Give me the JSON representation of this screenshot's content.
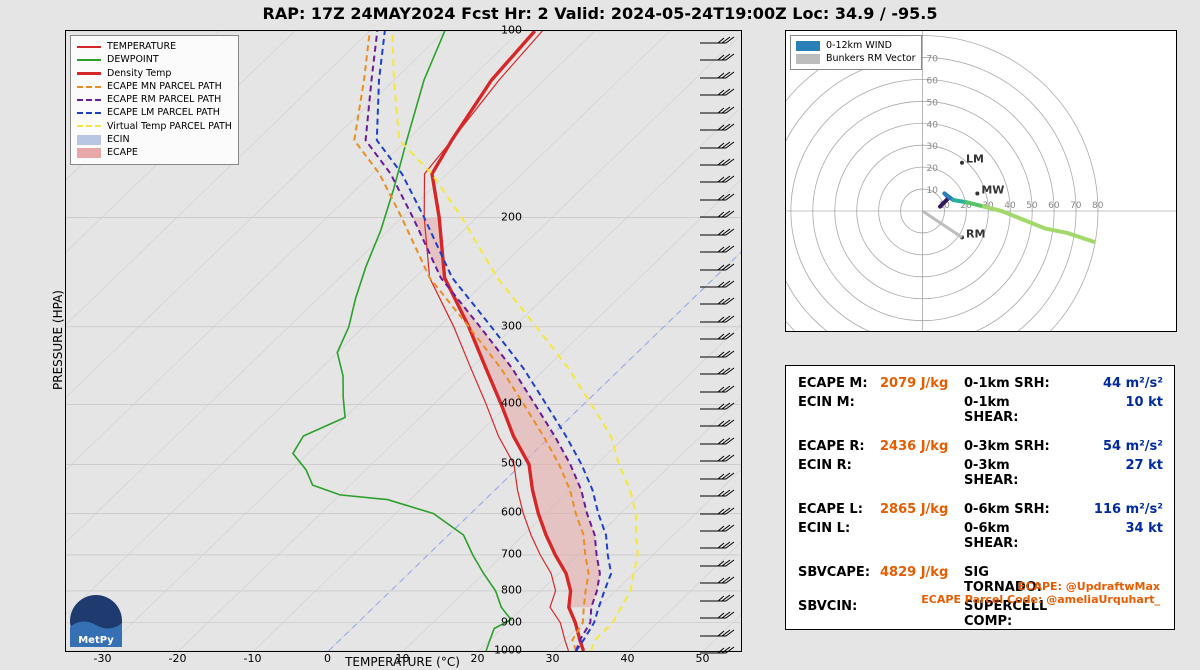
{
  "title": "RAP: 17Z 24MAY2024 Fcst Hr: 2  Valid: 2024-05-24T19:00Z  Loc: 34.9 / -95.5",
  "skewt": {
    "type": "skewt-logp",
    "xlabel": "TEMPERATURE (°C)",
    "ylabel": "PRESSURE (HPA)",
    "xlim": [
      -35,
      55
    ],
    "xticks": [
      -30,
      -20,
      -10,
      0,
      10,
      20,
      30,
      40,
      50
    ],
    "pressure_levels": [
      100,
      200,
      300,
      400,
      500,
      600,
      700,
      800,
      900,
      1000
    ],
    "background_color": "#e5e5e5",
    "grid_color": "#cccccc",
    "skew_guide_color": "#9aaee8",
    "ecape_fill_color": "#e8a8a8",
    "ecape_fill_opacity": 0.55,
    "ecin_fill_color": "#b8c6e4",
    "series": {
      "temperature": {
        "label": "TEMPERATURE",
        "color": "#d62728",
        "width": 1.2,
        "dash": "none",
        "pts": [
          [
            32,
            1000
          ],
          [
            30,
            960
          ],
          [
            27,
            900
          ],
          [
            23.5,
            850
          ],
          [
            22,
            800
          ],
          [
            19,
            750
          ],
          [
            15,
            700
          ],
          [
            11,
            650
          ],
          [
            7,
            600
          ],
          [
            3,
            550
          ],
          [
            -1,
            500
          ],
          [
            -7,
            450
          ],
          [
            -13,
            400
          ],
          [
            -20,
            350
          ],
          [
            -28,
            300
          ],
          [
            -38,
            250
          ],
          [
            -47,
            200
          ],
          [
            -53,
            170
          ],
          [
            -54,
            150
          ],
          [
            -56,
            120
          ],
          [
            -57,
            100
          ]
        ]
      },
      "dewpoint": {
        "label": "DEWPOINT",
        "color": "#2ca02c",
        "width": 1.6,
        "dash": "none",
        "pts": [
          [
            21,
            1000
          ],
          [
            20,
            960
          ],
          [
            19,
            920
          ],
          [
            20,
            890
          ],
          [
            17,
            850
          ],
          [
            14,
            800
          ],
          [
            10,
            750
          ],
          [
            6,
            700
          ],
          [
            2,
            650
          ],
          [
            -5,
            600
          ],
          [
            -13,
            570
          ],
          [
            -20,
            560
          ],
          [
            -25,
            540
          ],
          [
            -28,
            510
          ],
          [
            -32,
            480
          ],
          [
            -33,
            450
          ],
          [
            -30,
            420
          ],
          [
            -33,
            390
          ],
          [
            -36,
            360
          ],
          [
            -40,
            330
          ],
          [
            -42,
            300
          ],
          [
            -45,
            270
          ],
          [
            -48,
            240
          ],
          [
            -51,
            210
          ],
          [
            -55,
            180
          ],
          [
            -60,
            150
          ],
          [
            -66,
            120
          ],
          [
            -70,
            100
          ]
        ]
      },
      "density_temp": {
        "label": "Density Temp",
        "color": "#d62728",
        "width": 3.4,
        "dash": "none",
        "pts": [
          [
            34,
            1000
          ],
          [
            32,
            960
          ],
          [
            29,
            900
          ],
          [
            26,
            850
          ],
          [
            24,
            800
          ],
          [
            21,
            750
          ],
          [
            17,
            700
          ],
          [
            13,
            650
          ],
          [
            9,
            600
          ],
          [
            5,
            550
          ],
          [
            1,
            500
          ],
          [
            -5,
            450
          ],
          [
            -11,
            400
          ],
          [
            -18,
            350
          ],
          [
            -26,
            300
          ],
          [
            -36,
            250
          ],
          [
            -45,
            200
          ],
          [
            -52,
            170
          ],
          [
            -54,
            150
          ],
          [
            -57,
            120
          ],
          [
            -58,
            100
          ]
        ]
      },
      "ecape_mn": {
        "label": "ECAPE MN PARCEL PATH",
        "color": "#e98e24",
        "width": 2.0,
        "dash": "6,4",
        "pts": [
          [
            33,
            1000
          ],
          [
            31,
            960
          ],
          [
            30,
            900
          ],
          [
            28,
            850
          ],
          [
            26,
            800
          ],
          [
            24,
            750
          ],
          [
            21,
            700
          ],
          [
            18,
            650
          ],
          [
            14,
            600
          ],
          [
            10,
            550
          ],
          [
            5,
            500
          ],
          [
            -1,
            450
          ],
          [
            -8,
            400
          ],
          [
            -16,
            350
          ],
          [
            -26,
            300
          ],
          [
            -38,
            250
          ],
          [
            -50,
            200
          ],
          [
            -59,
            170
          ],
          [
            -67,
            150
          ],
          [
            -74,
            120
          ],
          [
            -80,
            100
          ]
        ]
      },
      "ecape_rm": {
        "label": "ECAPE RM PARCEL PATH",
        "color": "#6a1b9a",
        "width": 2.0,
        "dash": "6,4",
        "pts": [
          [
            33,
            1000
          ],
          [
            32,
            960
          ],
          [
            31,
            900
          ],
          [
            29,
            850
          ],
          [
            27.5,
            800
          ],
          [
            25.5,
            750
          ],
          [
            22.5,
            700
          ],
          [
            19.5,
            650
          ],
          [
            15.5,
            600
          ],
          [
            11.5,
            550
          ],
          [
            6.5,
            500
          ],
          [
            0.5,
            450
          ],
          [
            -6.5,
            400
          ],
          [
            -14.5,
            350
          ],
          [
            -24.5,
            300
          ],
          [
            -36.5,
            250
          ],
          [
            -48.5,
            200
          ],
          [
            -57.5,
            170
          ],
          [
            -65.5,
            150
          ],
          [
            -73,
            120
          ],
          [
            -79,
            100
          ]
        ]
      },
      "ecape_lm": {
        "label": "ECAPE LM PARCEL PATH",
        "color": "#1e40c8",
        "width": 2.0,
        "dash": "6,4",
        "pts": [
          [
            33,
            1000
          ],
          [
            32.5,
            960
          ],
          [
            31.5,
            900
          ],
          [
            30,
            850
          ],
          [
            28.5,
            800
          ],
          [
            27,
            750
          ],
          [
            24,
            700
          ],
          [
            21,
            650
          ],
          [
            17,
            600
          ],
          [
            13,
            550
          ],
          [
            8,
            500
          ],
          [
            2,
            450
          ],
          [
            -5,
            400
          ],
          [
            -13,
            350
          ],
          [
            -23,
            300
          ],
          [
            -35,
            250
          ],
          [
            -47,
            200
          ],
          [
            -56,
            170
          ],
          [
            -64,
            150
          ],
          [
            -72,
            120
          ],
          [
            -78,
            100
          ]
        ]
      },
      "virt_temp": {
        "label": "Virtual Temp PARCEL PATH",
        "color": "#f5e83b",
        "width": 2.0,
        "dash": "7,5",
        "pts": [
          [
            35,
            1000
          ],
          [
            34,
            960
          ],
          [
            34,
            900
          ],
          [
            33,
            850
          ],
          [
            32,
            800
          ],
          [
            30,
            750
          ],
          [
            28,
            700
          ],
          [
            25,
            650
          ],
          [
            22,
            600
          ],
          [
            18,
            550
          ],
          [
            13,
            500
          ],
          [
            8,
            450
          ],
          [
            1,
            400
          ],
          [
            -7,
            350
          ],
          [
            -17,
            300
          ],
          [
            -29,
            250
          ],
          [
            -42,
            200
          ],
          [
            -52,
            170
          ],
          [
            -61,
            150
          ],
          [
            -70,
            120
          ],
          [
            -77,
            100
          ]
        ]
      }
    },
    "legend_patches": {
      "ecin": {
        "label": "ECIN",
        "color": "#b8c6e4"
      },
      "ecape": {
        "label": "ECAPE",
        "color": "#e8a8a8"
      }
    }
  },
  "barbs": {
    "count": 36,
    "color": "#000000"
  },
  "hodo": {
    "type": "hodograph",
    "background_color": "#ffffff",
    "ring_color": "#aaaaaa",
    "ring_max": 80,
    "ring_step": 10,
    "center_offset": [
      0.35,
      0.6
    ],
    "legend": [
      {
        "label": "0-12km WIND",
        "color": "#2980b9",
        "patch": true
      },
      {
        "label": "Bunkers RM Vector",
        "color": "#bdbdbd",
        "patch": true
      }
    ],
    "annotations": {
      "LM": [
        18,
        -22
      ],
      "MW": [
        25,
        -8
      ],
      "RM": [
        18,
        12
      ]
    },
    "trace_colors": [
      "#301860",
      "#3838a8",
      "#2980b9",
      "#27ae9c",
      "#56c568",
      "#a2d96a"
    ],
    "trace": [
      [
        8,
        -2
      ],
      [
        12,
        -6
      ],
      [
        10,
        -8
      ],
      [
        14,
        -5
      ],
      [
        20,
        -4
      ],
      [
        28,
        -2
      ],
      [
        36,
        0
      ],
      [
        46,
        4
      ],
      [
        56,
        8
      ],
      [
        66,
        10
      ],
      [
        78,
        14
      ]
    ]
  },
  "stats": {
    "rows": [
      {
        "l1": "ECAPE M:",
        "v1": "2079 J/kg",
        "l2": "0-1km SRH:",
        "v2": "44 m²/s²"
      },
      {
        "l1": "ECIN M:",
        "v1": "",
        "l2": "0-1km SHEAR:",
        "v2": "10 kt"
      },
      {
        "gap": true
      },
      {
        "l1": "ECAPE R:",
        "v1": "2436 J/kg",
        "l2": "0-3km SRH:",
        "v2": "54 m²/s²"
      },
      {
        "l1": "ECIN R:",
        "v1": "",
        "l2": "0-3km SHEAR:",
        "v2": "27 kt"
      },
      {
        "gap": true
      },
      {
        "l1": "ECAPE L:",
        "v1": "2865 J/kg",
        "l2": "0-6km SRH:",
        "v2": "116 m²/s²"
      },
      {
        "l1": "ECIN L:",
        "v1": "",
        "l2": "0-6km SHEAR:",
        "v2": "34 kt"
      },
      {
        "gap": true
      },
      {
        "l1": "SBVCAPE:",
        "v1": "4829 J/kg",
        "l2": "SIG TORNADO:",
        "v2": ""
      },
      {
        "l1": "SBVCIN:",
        "v1": "",
        "l2": "SUPERCELL COMP:",
        "v2": ""
      }
    ],
    "credit1": "ECAPE: @UpdraftwMax",
    "credit2": "ECAPE Parcel Code: @ameliaUrquhart_"
  },
  "logo_text": "MetPy"
}
